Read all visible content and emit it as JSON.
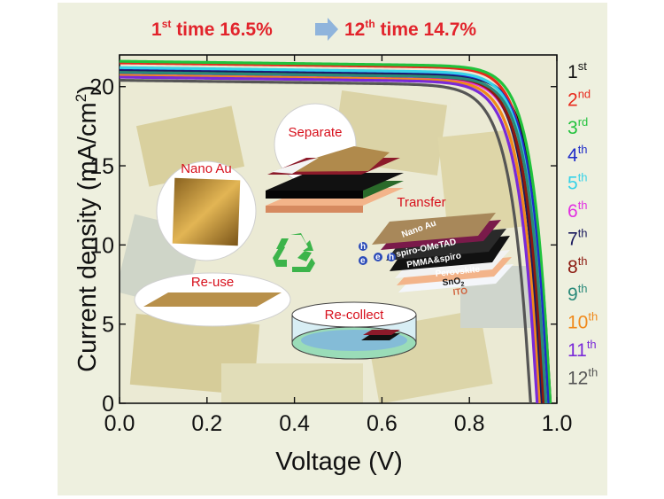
{
  "title": {
    "part1_prefix": "1",
    "part1_sup": "st",
    "part1_rest": " time 16.5%",
    "part2_prefix": "12",
    "part2_sup": "th",
    "part2_rest": " time   14.7%",
    "color": "#e2242c",
    "arrow_color": "#8fb4dc"
  },
  "inset_labels": {
    "separate": "Separate",
    "nano_au": "Nano Au",
    "transfer": "Transfer",
    "re_use": "Re-use",
    "re_collect": "Re-collect",
    "layers": {
      "nano_au": "Nano Au",
      "spiro": "spiro-OMeTAD",
      "pmma": "PMMA&spiro",
      "perovskite": "Perovskite",
      "sno2": "SnO",
      "sno2_sub": "2",
      "ito": "ITO",
      "hole": "h",
      "electron": "e"
    }
  },
  "chart_data": {
    "type": "line",
    "xlabel": "Voltage (V)",
    "ylabel": "Current density (mA/cm",
    "ylabel_sup": "2",
    "ylabel_end": ")",
    "xlim": [
      0.0,
      1.0
    ],
    "ylim": [
      0,
      22
    ],
    "xticks": [
      "0.0",
      "0.2",
      "0.4",
      "0.6",
      "0.8",
      "1.0"
    ],
    "yticks": [
      "0",
      "5",
      "10",
      "15",
      "20"
    ],
    "legend_position": "right",
    "series": [
      {
        "name": "1",
        "sup": "st",
        "color": "#111111",
        "jsc": 21.0,
        "voc": 0.985,
        "fill": 0.8
      },
      {
        "name": "2",
        "sup": "nd",
        "color": "#e8291c",
        "jsc": 21.5,
        "voc": 0.975,
        "fill": 0.81
      },
      {
        "name": "3",
        "sup": "rd",
        "color": "#21c23c",
        "jsc": 21.6,
        "voc": 0.985,
        "fill": 0.8
      },
      {
        "name": "4",
        "sup": "th",
        "color": "#1f2cc8",
        "jsc": 21.1,
        "voc": 0.98,
        "fill": 0.8
      },
      {
        "name": "5",
        "sup": "th",
        "color": "#36d2e8",
        "jsc": 21.2,
        "voc": 0.975,
        "fill": 0.8
      },
      {
        "name": "6",
        "sup": "th",
        "color": "#e22fe2",
        "jsc": 20.8,
        "voc": 0.97,
        "fill": 0.79
      },
      {
        "name": "7",
        "sup": "th",
        "color": "#1a1a5e",
        "jsc": 21.0,
        "voc": 0.965,
        "fill": 0.8
      },
      {
        "name": "8",
        "sup": "th",
        "color": "#8c1a10",
        "jsc": 20.9,
        "voc": 0.97,
        "fill": 0.79
      },
      {
        "name": "9",
        "sup": "th",
        "color": "#2a8a7a",
        "jsc": 20.9,
        "voc": 0.975,
        "fill": 0.8
      },
      {
        "name": "10",
        "sup": "th",
        "color": "#f08a1c",
        "jsc": 20.7,
        "voc": 0.96,
        "fill": 0.79
      },
      {
        "name": "11",
        "sup": "th",
        "color": "#7a2ad8",
        "jsc": 20.6,
        "voc": 0.955,
        "fill": 0.78
      },
      {
        "name": "12",
        "sup": "th",
        "color": "#555555",
        "jsc": 20.4,
        "voc": 0.94,
        "fill": 0.76
      }
    ]
  }
}
